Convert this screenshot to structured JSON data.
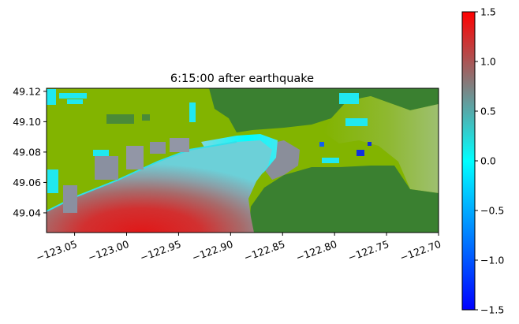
{
  "chart_data": {
    "type": "heatmap",
    "title": "6:15:00 after earthquake",
    "xlabel": "",
    "ylabel": "",
    "xlim": [
      -123.077,
      -122.7
    ],
    "ylim": [
      49.027,
      49.122
    ],
    "x_ticks": [
      -123.05,
      -123.0,
      -122.95,
      -122.9,
      -122.85,
      -122.8,
      -122.75,
      -122.7
    ],
    "x_tick_labels": [
      "−123.05",
      "−123.00",
      "−122.95",
      "−122.90",
      "−122.85",
      "−122.80",
      "−122.75",
      "−122.70"
    ],
    "y_ticks": [
      49.04,
      49.06,
      49.08,
      49.1,
      49.12
    ],
    "y_tick_labels": [
      "49.04",
      "49.06",
      "49.08",
      "49.10",
      "49.12"
    ],
    "x_tick_rotation_deg": 20,
    "grid": false,
    "colorbar": {
      "vmin": -1.5,
      "vmax": 1.5,
      "ticks": [
        -1.5,
        -1.0,
        -0.5,
        0.0,
        0.5,
        1.0,
        1.5
      ],
      "tick_labels": [
        "−1.5",
        "−1.0",
        "−0.5",
        "0.0",
        "0.5",
        "1.0",
        "1.5"
      ],
      "colormap": [
        {
          "value": -1.5,
          "color": "#0000ff"
        },
        {
          "value": -0.75,
          "color": "#0080ff"
        },
        {
          "value": 0.0,
          "color": "#00ffff"
        },
        {
          "value": 0.75,
          "color": "#808080"
        },
        {
          "value": 1.5,
          "color": "#ff0000"
        }
      ]
    },
    "land_colors": {
      "dry_land": "#3a8030",
      "lowland": "#82b400"
    }
  }
}
